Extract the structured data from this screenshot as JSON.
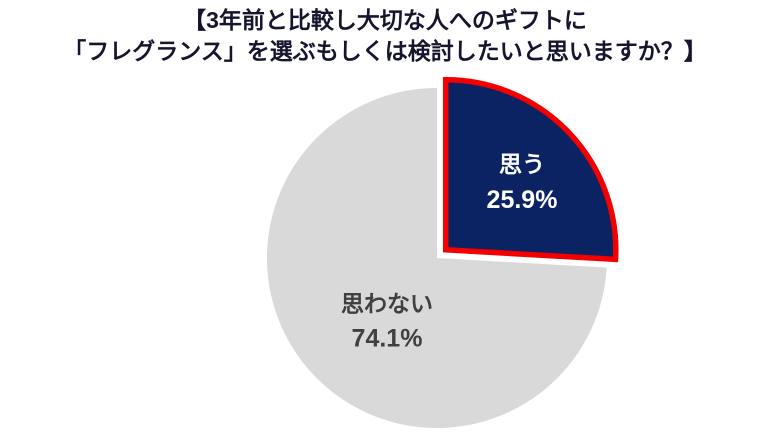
{
  "chart_data": {
    "type": "pie",
    "title_lines": [
      "【3年前と比較し大切な人へのギフトに",
      "「フレグランス」を選ぶもしくは検討したいと思いますか？】"
    ],
    "title_color": "#15152d",
    "start_angle_deg": 0,
    "direction": "clockwise",
    "legend": "none",
    "labels_inside": true,
    "categories": [
      "思う",
      "思わない"
    ],
    "values": [
      25.9,
      74.1
    ],
    "slices": [
      {
        "label": "思う",
        "value": 25.9,
        "display": "25.9%",
        "color": "#0b2363",
        "border_color": "#f40000",
        "label_color": "#ffffff",
        "exploded": true
      },
      {
        "label": "思わない",
        "value": 74.1,
        "display": "74.1%",
        "color": "#d9d9d9",
        "border_color": null,
        "label_color": "#404040",
        "exploded": false
      }
    ]
  }
}
